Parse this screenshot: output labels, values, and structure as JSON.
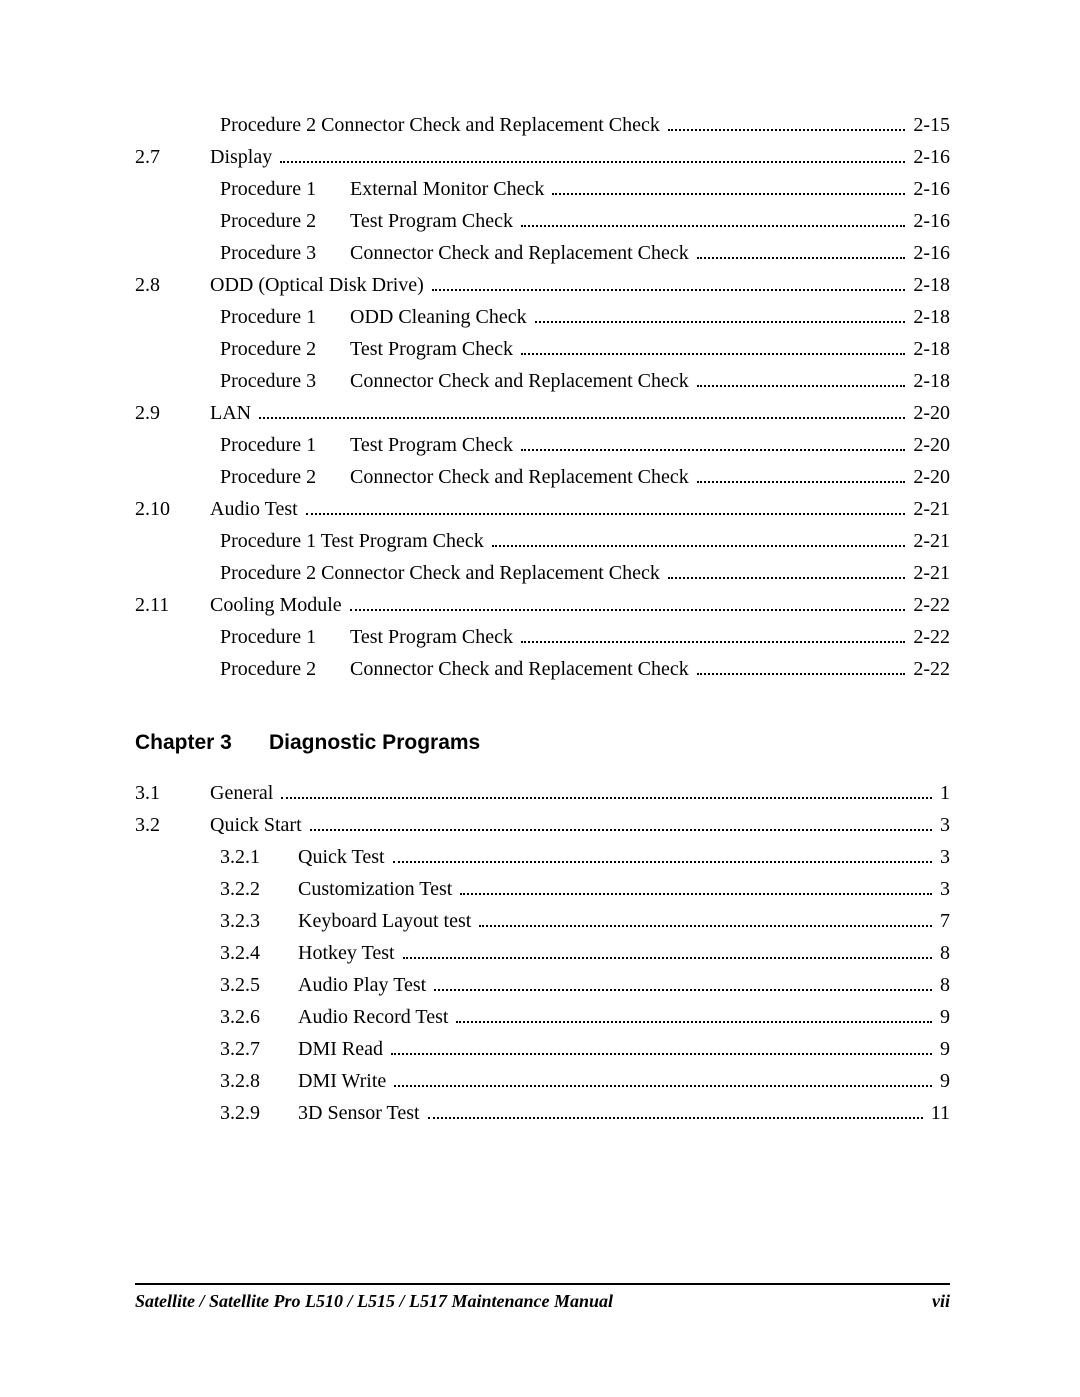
{
  "toc": [
    {
      "type": "sub",
      "indent": 1,
      "label": "Procedure 2 Connector Check and Replacement Check",
      "page": "2-15"
    },
    {
      "type": "entry",
      "num": "2.7",
      "label": "Display",
      "page": "2-16"
    },
    {
      "type": "proc",
      "indent": 1,
      "proc": "Procedure 1",
      "label": "External Monitor Check",
      "page": "2-16"
    },
    {
      "type": "proc",
      "indent": 1,
      "proc": "Procedure 2",
      "label": "Test Program Check",
      "page": "2-16"
    },
    {
      "type": "proc",
      "indent": 1,
      "proc": "Procedure 3",
      "label": "Connector Check and Replacement Check",
      "page": "2-16"
    },
    {
      "type": "entry",
      "num": "2.8",
      "label": "ODD (Optical Disk Drive)",
      "page": "2-18"
    },
    {
      "type": "proc",
      "indent": 1,
      "proc": "Procedure 1",
      "label": "ODD Cleaning Check",
      "page": "2-18"
    },
    {
      "type": "proc",
      "indent": 1,
      "proc": "Procedure 2",
      "label": "Test Program Check",
      "page": "2-18"
    },
    {
      "type": "proc",
      "indent": 1,
      "proc": "Procedure 3",
      "label": "Connector Check and Replacement Check",
      "page": "2-18"
    },
    {
      "type": "entry",
      "num": "2.9",
      "label": "LAN",
      "page": "2-20"
    },
    {
      "type": "proc",
      "indent": 1,
      "proc": "Procedure 1",
      "label": "Test Program Check",
      "page": "2-20"
    },
    {
      "type": "proc",
      "indent": 1,
      "proc": "Procedure 2",
      "label": "Connector Check and Replacement Check",
      "page": "2-20"
    },
    {
      "type": "entry",
      "num": "2.10",
      "label": "Audio Test",
      "page": "2-21"
    },
    {
      "type": "sub",
      "indent": 1,
      "label": "Procedure 1 Test Program Check",
      "page": "2-21"
    },
    {
      "type": "sub",
      "indent": 1,
      "label": "Procedure 2 Connector Check and Replacement Check",
      "page": "2-21"
    },
    {
      "type": "entry",
      "num": "2.11",
      "label": "Cooling Module",
      "page": "2-22"
    },
    {
      "type": "proc",
      "indent": 1,
      "proc": "Procedure 1",
      "label": "Test Program Check",
      "page": "2-22"
    },
    {
      "type": "proc",
      "indent": 1,
      "proc": "Procedure 2",
      "label": "Connector Check and Replacement Check",
      "page": "2-22"
    }
  ],
  "chapter": {
    "num": "Chapter 3",
    "title": "Diagnostic Programs"
  },
  "toc2": [
    {
      "type": "entry",
      "num": "3.1",
      "label": "General",
      "page": "1"
    },
    {
      "type": "entry",
      "num": "3.2",
      "label": "Quick Start",
      "page": "3"
    },
    {
      "type": "subnum",
      "indent": 1,
      "subnum": "3.2.1",
      "label": "Quick Test",
      "page": "3"
    },
    {
      "type": "subnum",
      "indent": 1,
      "subnum": "3.2.2",
      "label": "Customization Test",
      "page": "3"
    },
    {
      "type": "subnum",
      "indent": 1,
      "subnum": "3.2.3",
      "label": "Keyboard Layout test",
      "page": "7"
    },
    {
      "type": "subnum",
      "indent": 1,
      "subnum": "3.2.4",
      "label": "Hotkey Test",
      "page": "8"
    },
    {
      "type": "subnum",
      "indent": 1,
      "subnum": "3.2.5",
      "label": "Audio Play Test",
      "page": "8"
    },
    {
      "type": "subnum",
      "indent": 1,
      "subnum": "3.2.6",
      "label": "Audio Record Test",
      "page": "9"
    },
    {
      "type": "subnum",
      "indent": 1,
      "subnum": "3.2.7",
      "label": "DMI Read",
      "page": "9"
    },
    {
      "type": "subnum",
      "indent": 1,
      "subnum": "3.2.8",
      "label": "DMI Write",
      "page": "9"
    },
    {
      "type": "subnum",
      "indent": 1,
      "subnum": "3.2.9",
      "label": "3D Sensor Test",
      "page": "11"
    }
  ],
  "footer": {
    "left": "Satellite / Satellite Pro L510 / L515 / L517    Maintenance Manual",
    "right": "vii"
  }
}
